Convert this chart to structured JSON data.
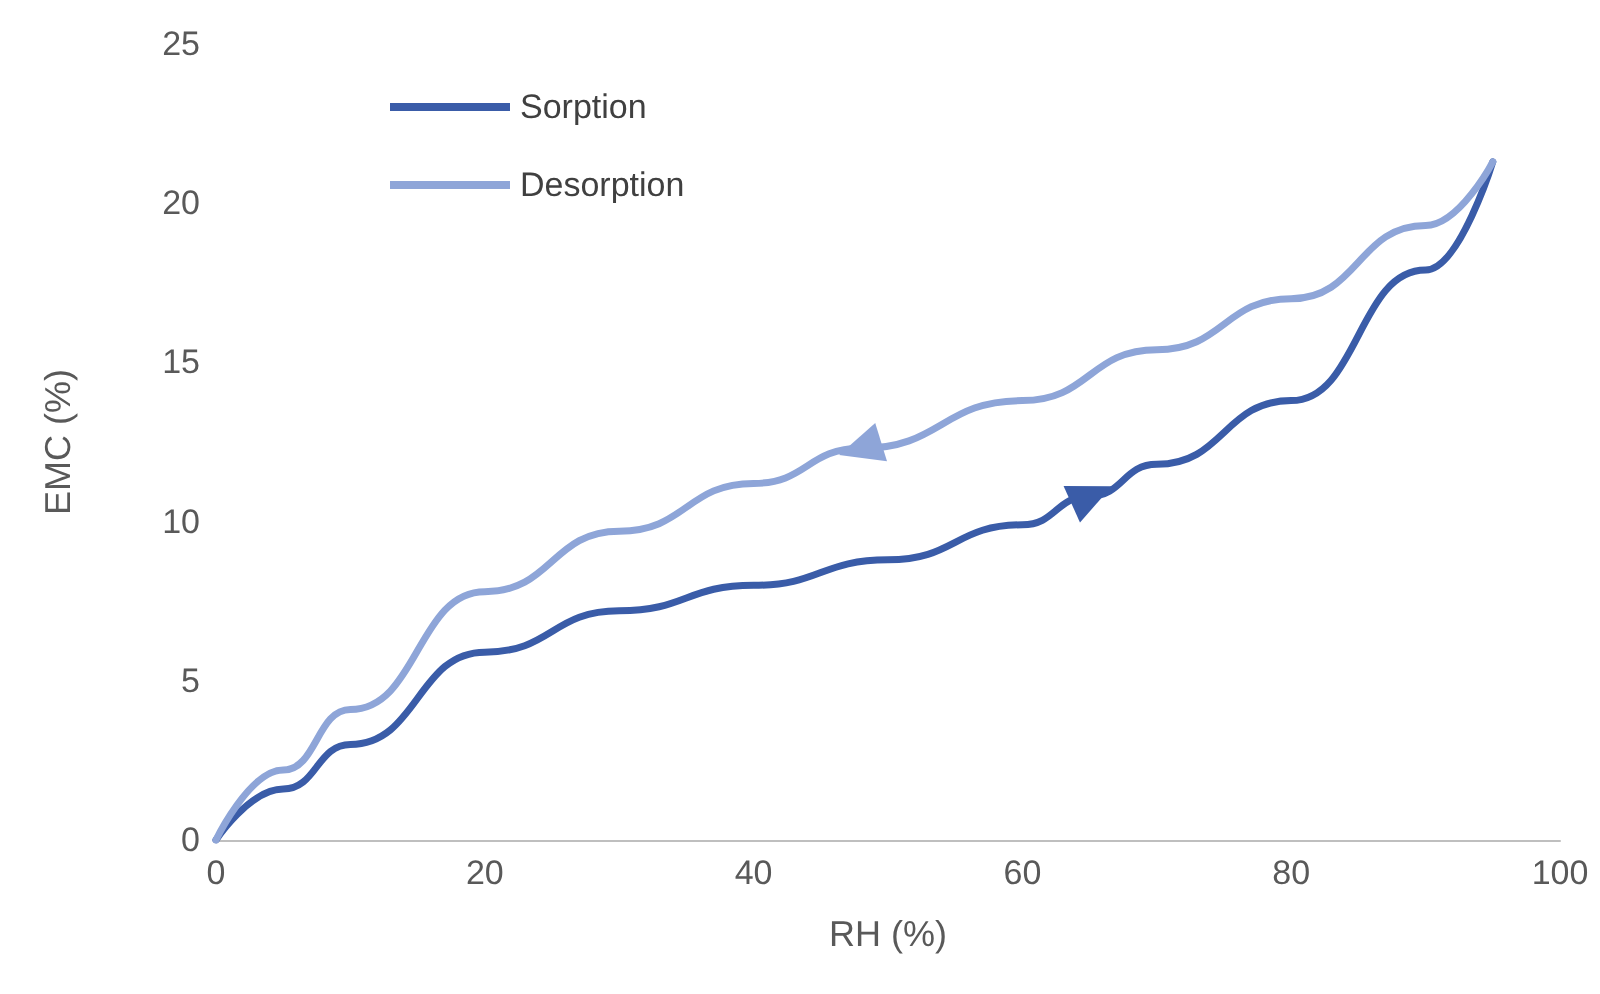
{
  "chart_data": {
    "type": "line",
    "xlabel": "RH (%)",
    "ylabel": "EMC (%)",
    "series": [
      {
        "name": "Sorption",
        "color": "#3a5ca8",
        "x": [
          0,
          5,
          10,
          20,
          30,
          40,
          50,
          60,
          65,
          70,
          80,
          90,
          95
        ],
        "values": [
          0,
          1.6,
          3.0,
          5.9,
          7.2,
          8.0,
          8.8,
          9.9,
          10.8,
          11.8,
          13.8,
          17.9,
          21.3
        ]
      },
      {
        "name": "Desorption",
        "color": "#8ea5d8",
        "x": [
          0,
          5,
          10,
          20,
          30,
          40,
          48,
          60,
          70,
          80,
          90,
          95
        ],
        "values": [
          0,
          2.2,
          4.1,
          7.8,
          9.7,
          11.2,
          12.3,
          13.8,
          15.4,
          17.0,
          19.3,
          21.3
        ]
      }
    ],
    "xlim": [
      0,
      100
    ],
    "xticks": [
      0,
      20,
      40,
      60,
      80,
      100
    ],
    "ylim": [
      0,
      25
    ],
    "yticks": [
      0,
      5,
      10,
      15,
      20,
      25
    ],
    "grid": false,
    "legend": "top left",
    "marker": "none",
    "line_style": "solid"
  }
}
